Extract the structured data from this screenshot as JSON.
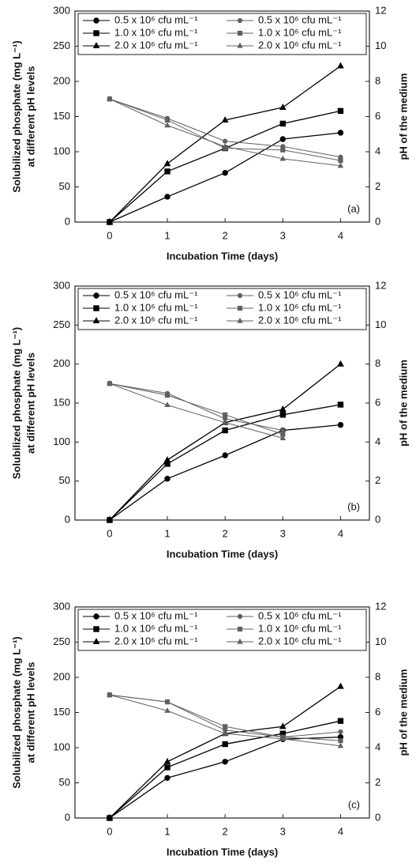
{
  "chart_data": [
    {
      "type": "line",
      "xlabel": "Incubation Time (days)",
      "ylabel": [
        "Solubilized phosphate (mg L⁻¹)",
        "at different pH levels"
      ],
      "y2label": "pH of the medium",
      "annotation": "(a)",
      "x": [
        0,
        1,
        2,
        3,
        4
      ],
      "xlim": [
        -0.6,
        4.5
      ],
      "xticks": [
        0,
        1,
        2,
        3,
        4
      ],
      "ylim": [
        0,
        300
      ],
      "yticks": [
        0,
        50,
        100,
        150,
        200,
        250,
        300
      ],
      "y2lim": [
        0,
        12
      ],
      "y2ticks": [
        0,
        2,
        4,
        6,
        8,
        10,
        12
      ],
      "series": [
        {
          "name": "0.5 x 10⁶ cfu mL⁻¹",
          "color": "#000000",
          "marker": "circle",
          "values": [
            0,
            36,
            70,
            118,
            127
          ]
        },
        {
          "name": "1.0 x 10⁶ cfu mL⁻¹",
          "color": "#000000",
          "marker": "square",
          "values": [
            0,
            72,
            105,
            140,
            158
          ]
        },
        {
          "name": "2.0 x 10⁶ cfu mL⁻¹",
          "color": "#000000",
          "marker": "triangle",
          "values": [
            0,
            83,
            145,
            163,
            222
          ]
        },
        {
          "name": "0.5 x 10⁶ cfu mL⁻¹",
          "color": "#606060",
          "marker": "circle",
          "axis": "y2",
          "values": [
            7.0,
            5.9,
            4.6,
            4.3,
            3.7
          ]
        },
        {
          "name": "1.0 x 10⁶ cfu mL⁻¹",
          "color": "#606060",
          "marker": "square",
          "axis": "y2",
          "values": [
            7.0,
            5.8,
            4.2,
            4.1,
            3.5
          ]
        },
        {
          "name": "2.0 x 10⁶ cfu mL⁻¹",
          "color": "#606060",
          "marker": "triangle",
          "axis": "y2",
          "values": [
            7.0,
            5.5,
            4.3,
            3.6,
            3.2
          ]
        }
      ]
    },
    {
      "type": "line",
      "xlabel": "Incubation Time (days)",
      "ylabel": [
        "Solubilized phosphate (mg L⁻¹)",
        "at different pH levels"
      ],
      "y2label": "pH of the medium",
      "annotation": "(b)",
      "x": [
        0,
        1,
        2,
        3,
        4
      ],
      "xlim": [
        -0.6,
        4.5
      ],
      "xticks": [
        0,
        1,
        2,
        3,
        4
      ],
      "ylim": [
        0,
        300
      ],
      "yticks": [
        0,
        50,
        100,
        150,
        200,
        250,
        300
      ],
      "y2lim": [
        0,
        12
      ],
      "y2ticks": [
        0,
        2,
        4,
        6,
        8,
        10,
        12
      ],
      "series": [
        {
          "name": "0.5 x 10⁶ cfu mL⁻¹",
          "color": "#000000",
          "marker": "circle",
          "values": [
            0,
            53,
            83,
            115,
            122
          ]
        },
        {
          "name": "1.0 x 10⁶ cfu mL⁻¹",
          "color": "#000000",
          "marker": "square",
          "values": [
            0,
            72,
            115,
            135,
            148
          ]
        },
        {
          "name": "2.0 x 10⁶ cfu mL⁻¹",
          "color": "#000000",
          "marker": "triangle",
          "values": [
            0,
            77,
            125,
            142,
            200
          ]
        },
        {
          "name": "0.5 x 10⁶ cfu mL⁻¹",
          "color": "#606060",
          "marker": "circle",
          "axis": "y2",
          "values": [
            7.0,
            6.5,
            5.2,
            4.6,
            null
          ]
        },
        {
          "name": "1.0 x 10⁶ cfu mL⁻¹",
          "color": "#606060",
          "marker": "square",
          "axis": "y2",
          "values": [
            7.0,
            6.4,
            5.4,
            4.4,
            null
          ]
        },
        {
          "name": "2.0 x 10⁶ cfu mL⁻¹",
          "color": "#606060",
          "marker": "triangle",
          "axis": "y2",
          "values": [
            7.0,
            5.9,
            5.0,
            4.2,
            null
          ]
        }
      ]
    },
    {
      "type": "line",
      "xlabel": "Incubation Time (days)",
      "ylabel": [
        "Solubilized phosphate (mg L⁻¹)",
        "at different pH levels"
      ],
      "y2label": "pH of the medium",
      "annotation": "(c)",
      "x": [
        0,
        1,
        2,
        3,
        4
      ],
      "xlim": [
        -0.6,
        4.5
      ],
      "xticks": [
        0,
        1,
        2,
        3,
        4
      ],
      "ylim": [
        0,
        300
      ],
      "yticks": [
        0,
        50,
        100,
        150,
        200,
        250,
        300
      ],
      "y2lim": [
        0,
        12
      ],
      "y2ticks": [
        0,
        2,
        4,
        6,
        8,
        10,
        12
      ],
      "series": [
        {
          "name": "0.5 x 10⁶ cfu mL⁻¹",
          "color": "#000000",
          "marker": "circle",
          "values": [
            0,
            57,
            80,
            112,
            115
          ]
        },
        {
          "name": "1.0 x 10⁶ cfu mL⁻¹",
          "color": "#000000",
          "marker": "square",
          "values": [
            0,
            72,
            105,
            120,
            138
          ]
        },
        {
          "name": "2.0 x 10⁶ cfu mL⁻¹",
          "color": "#000000",
          "marker": "triangle",
          "values": [
            0,
            80,
            120,
            130,
            187
          ]
        },
        {
          "name": "0.5 x 10⁶ cfu mL⁻¹",
          "color": "#606060",
          "marker": "circle",
          "axis": "y2",
          "values": [
            7.0,
            6.6,
            5.0,
            4.6,
            4.9
          ]
        },
        {
          "name": "1.0 x 10⁶ cfu mL⁻¹",
          "color": "#606060",
          "marker": "square",
          "axis": "y2",
          "values": [
            7.0,
            6.6,
            5.2,
            4.6,
            4.4
          ]
        },
        {
          "name": "2.0 x 10⁶ cfu mL⁻¹",
          "color": "#606060",
          "marker": "triangle",
          "axis": "y2",
          "values": [
            7.0,
            6.1,
            4.8,
            4.5,
            4.1
          ]
        }
      ]
    }
  ]
}
